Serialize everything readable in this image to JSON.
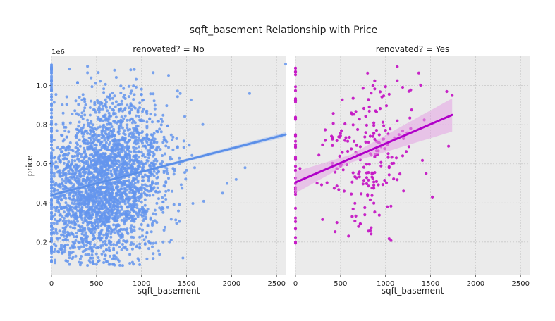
{
  "figure": {
    "title": "sqft_basement Relationship with Price"
  },
  "colors": {
    "panel_background": "#ebebeb",
    "grid": "#c8c8c8",
    "no_points": "#6495ed",
    "no_line": "#5b8fe8",
    "no_band": "#a9c3f3",
    "yes_points": "#c519c5",
    "yes_line": "#b000c8",
    "yes_band": "#e3a2e3"
  },
  "chart_data": [
    {
      "type": "scatter",
      "title": "renovated? = No",
      "xlabel": "sqft_basement",
      "ylabel": "price",
      "y_scale_label": "1e6",
      "xlim": [
        0,
        2600
      ],
      "ylim": [
        0.03,
        1.15
      ],
      "xticks": [
        0,
        500,
        1000,
        1500,
        2000,
        2500
      ],
      "yticks": [
        0.2,
        0.4,
        0.6,
        0.8,
        1.0
      ],
      "ytick_labels": [
        "0.2",
        "0.4",
        "0.6",
        "0.8",
        "1.0"
      ],
      "grid": true,
      "regression": {
        "x": [
          0,
          2600
        ],
        "y": [
          0.44,
          0.75
        ],
        "ci_halfwidth": [
          0.006,
          0.012
        ]
      },
      "sample": {
        "n": 2700,
        "x_mode": 620,
        "x_sd": 330,
        "x_max": 2100,
        "price_min": 0.08,
        "price_max": 1.11,
        "zero_basement_count": 140,
        "outliers": [
          [
            2600,
            1.11
          ],
          [
            2200,
            0.96
          ],
          [
            2150,
            0.58
          ],
          [
            2050,
            0.52
          ],
          [
            1950,
            0.5
          ],
          [
            1900,
            0.45
          ]
        ]
      }
    },
    {
      "type": "scatter",
      "title": "renovated? = Yes",
      "xlabel": "sqft_basement",
      "ylabel": "",
      "xlim": [
        0,
        2600
      ],
      "ylim": [
        0.03,
        1.15
      ],
      "xticks": [
        0,
        500,
        1000,
        1500,
        2000,
        2500
      ],
      "yticks": [
        0.2,
        0.4,
        0.6,
        0.8,
        1.0
      ],
      "grid": true,
      "regression": {
        "x": [
          0,
          1740
        ],
        "y": [
          0.505,
          0.85
        ],
        "ci_halfwidth": [
          0.02,
          0.085
        ]
      },
      "sample": {
        "n": 210,
        "x_mode": 780,
        "x_sd": 300,
        "x_max": 1500,
        "price_min": 0.19,
        "price_max": 1.11,
        "zero_basement_count": 45,
        "outliers": [
          [
            1740,
            0.95
          ],
          [
            1680,
            0.97
          ],
          [
            1700,
            0.69
          ],
          [
            1520,
            0.43
          ],
          [
            1450,
            0.55
          ]
        ]
      }
    }
  ]
}
